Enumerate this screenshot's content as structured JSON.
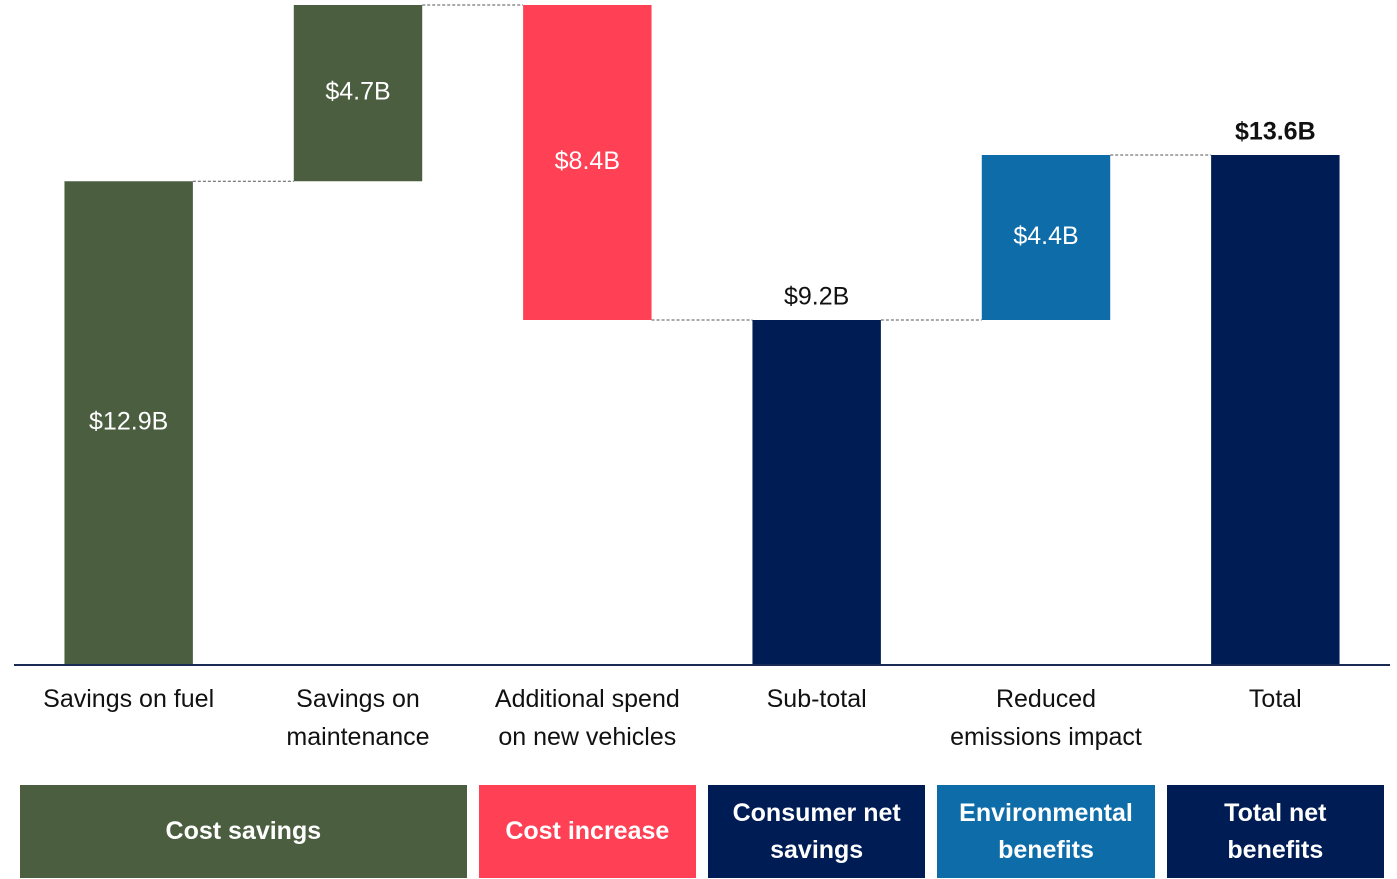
{
  "chart_data": {
    "type": "waterfall",
    "categories": [
      "Savings on fuel",
      "Savings on maintenance",
      "Additional spend on new vehicles",
      "Sub-total",
      "Reduced emissions impact",
      "Total"
    ],
    "values": [
      12.9,
      4.7,
      -8.4,
      9.2,
      4.4,
      13.6
    ],
    "value_labels": [
      "$12.9B",
      "$4.7B",
      "$8.4B",
      "$9.2B",
      "$4.4B",
      "$13.6B"
    ],
    "measure": [
      "relative",
      "relative",
      "relative",
      "total",
      "relative",
      "total"
    ],
    "colors": [
      "#4b5e40",
      "#4b5e40",
      "#ff4055",
      "#001c54",
      "#0e6ca8",
      "#001c54"
    ],
    "ylim": [
      0,
      17.6
    ],
    "groups": [
      {
        "name": "Cost savings",
        "color": "#4b5e40",
        "count": 2
      },
      {
        "name": "Cost increase",
        "color": "#ff4055",
        "count": 1
      },
      {
        "name": "Consumer net savings",
        "color": "#001c54",
        "count": 1
      },
      {
        "name": "Environmental benefits",
        "color": "#0e6ca8",
        "count": 1
      },
      {
        "name": "Total net benefits",
        "color": "#001c54",
        "count": 1
      }
    ]
  }
}
